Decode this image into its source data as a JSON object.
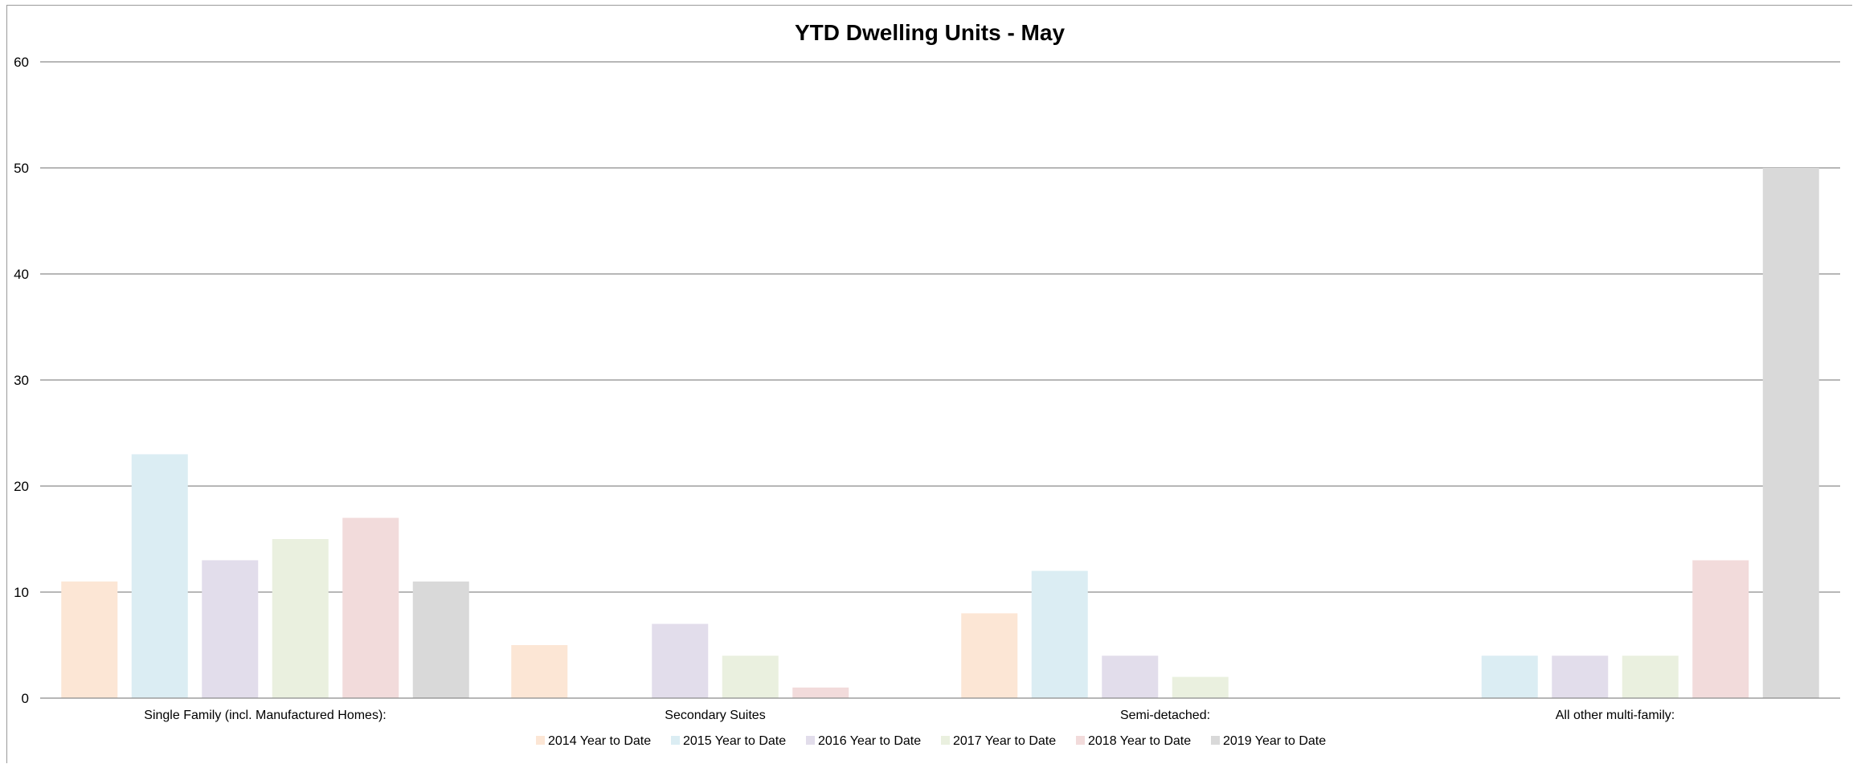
{
  "chart_data": {
    "type": "bar",
    "title": "YTD Dwelling Units - May",
    "xlabel": "",
    "ylabel": "",
    "ylim": [
      0,
      60
    ],
    "yticks": [
      0,
      10,
      20,
      30,
      40,
      50,
      60
    ],
    "grid": true,
    "legend_position": "bottom",
    "categories": [
      "Single Family (incl. Manufactured Homes):",
      "Secondary Suites",
      "Semi-detached:",
      "All other multi-family:"
    ],
    "series": [
      {
        "name": "2014 Year to Date",
        "color": "#fce6d5",
        "values": [
          11,
          5,
          8,
          0
        ]
      },
      {
        "name": "2015 Year to Date",
        "color": "#dbedf3",
        "values": [
          23,
          0,
          12,
          4
        ]
      },
      {
        "name": "2016 Year to Date",
        "color": "#e2ddeb",
        "values": [
          13,
          7,
          4,
          4
        ]
      },
      {
        "name": "2017 Year to Date",
        "color": "#eaf0df",
        "values": [
          15,
          4,
          2,
          4
        ]
      },
      {
        "name": "2018 Year to Date",
        "color": "#f2dbdb",
        "values": [
          17,
          1,
          0,
          13
        ]
      },
      {
        "name": "2019 Year to Date",
        "color": "#d9d9d9",
        "values": [
          11,
          0,
          0,
          50
        ]
      }
    ]
  }
}
